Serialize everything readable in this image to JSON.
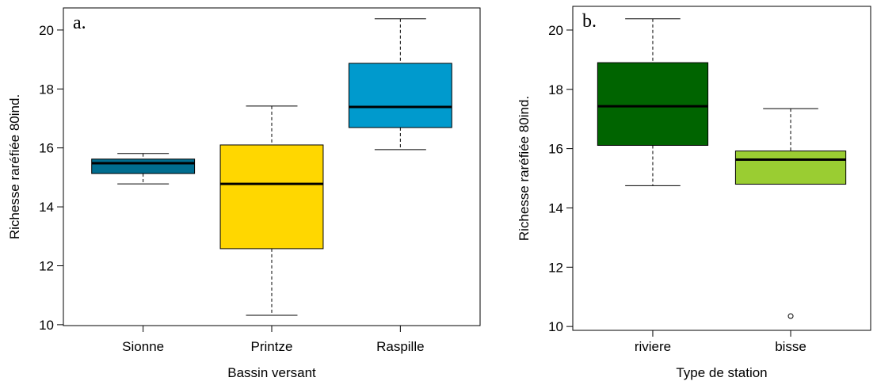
{
  "chart_data": [
    {
      "type": "box",
      "annotation": "a.",
      "xlabel": "Bassin versant",
      "ylabel": "Richesse raréfiée 80ind.",
      "categories": [
        "Sionne",
        "Printze",
        "Raspille"
      ],
      "boxes": [
        {
          "min": 14.78,
          "q1": 15.13,
          "median": 15.48,
          "q3": 15.62,
          "max": 15.81,
          "color": "#006d8f"
        },
        {
          "min": 10.32,
          "q1": 12.58,
          "median": 14.78,
          "q3": 16.1,
          "max": 17.42,
          "color": "#ffd700"
        },
        {
          "min": 15.94,
          "q1": 16.69,
          "median": 17.39,
          "q3": 18.87,
          "max": 20.38,
          "color": "#009acd"
        }
      ],
      "outliers": [
        [],
        [],
        []
      ],
      "ylim": [
        9.97,
        20.75
      ],
      "yticks": [
        10,
        12,
        14,
        16,
        18,
        20
      ]
    },
    {
      "type": "box",
      "annotation": "b.",
      "xlabel": "Type de station",
      "ylabel": "Richesse raréfiée 80ind.",
      "categories": [
        "riviere",
        "bisse"
      ],
      "boxes": [
        {
          "min": 14.75,
          "q1": 16.11,
          "median": 17.43,
          "q3": 18.9,
          "max": 20.38,
          "color": "#006400"
        },
        {
          "min": 14.8,
          "q1": 14.8,
          "median": 15.63,
          "q3": 15.92,
          "max": 17.35,
          "color": "#9acd32"
        }
      ],
      "outliers": [
        [],
        [
          10.35
        ]
      ],
      "ylim": [
        9.87,
        20.8
      ],
      "yticks": [
        10,
        12,
        14,
        16,
        18,
        20
      ]
    }
  ]
}
